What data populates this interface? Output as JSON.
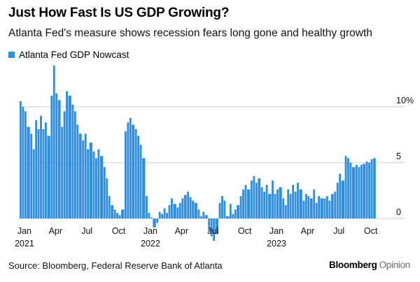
{
  "title": "Just How Fast Is US GDP Growing?",
  "subtitle": "Atlanta Fed's measure shows recession fears long gone and healthy growth",
  "source": "Source: Bloomberg, Federal Reserve Bank of Atlanta",
  "brand": {
    "name": "Bloomberg",
    "suffix": "Opinion"
  },
  "colors": {
    "series": "#2f8de4",
    "grid": "#cfcfcf",
    "text": "#111111"
  },
  "chart_data": {
    "type": "bar",
    "title": "Just How Fast Is US GDP Growing?",
    "subtitle": "Atlanta Fed's measure shows recession fears long gone and healthy growth",
    "xlabel": "",
    "ylabel": "",
    "x_range": [
      "2021-01-01",
      "2023-11-01"
    ],
    "ylim": [
      -2,
      15
    ],
    "grid": true,
    "legend": "top-left",
    "y_ticks": [
      {
        "value": 10,
        "label": "10%"
      },
      {
        "value": 5,
        "label": "5"
      },
      {
        "value": 0,
        "label": "0"
      }
    ],
    "x_ticks": [
      {
        "date": "2021-01-15",
        "label": "Jan",
        "year": "2021"
      },
      {
        "date": "2021-04-15",
        "label": "Apr"
      },
      {
        "date": "2021-07-15",
        "label": "Jul"
      },
      {
        "date": "2021-10-15",
        "label": "Oct"
      },
      {
        "date": "2022-01-15",
        "label": "Jan",
        "year": "2022"
      },
      {
        "date": "2022-04-15",
        "label": "Apr"
      },
      {
        "date": "2022-07-15",
        "label": "Jul"
      },
      {
        "date": "2022-10-15",
        "label": "Oct"
      },
      {
        "date": "2023-01-15",
        "label": "Jan",
        "year": "2023"
      },
      {
        "date": "2023-04-15",
        "label": "Apr"
      },
      {
        "date": "2023-07-15",
        "label": "Jul"
      },
      {
        "date": "2023-10-15",
        "label": "Oct"
      }
    ],
    "series": [
      {
        "name": "Atlanta Fed GDP Nowcast",
        "values": [
          [
            "2021-01-01",
            10.5
          ],
          [
            "2021-01-08",
            10.0
          ],
          [
            "2021-01-15",
            9.6
          ],
          [
            "2021-01-22",
            8.2
          ],
          [
            "2021-02-01",
            7.6
          ],
          [
            "2021-02-08",
            6.2
          ],
          [
            "2021-02-15",
            8.8
          ],
          [
            "2021-02-22",
            8.0
          ],
          [
            "2021-03-01",
            9.2
          ],
          [
            "2021-03-08",
            8.0
          ],
          [
            "2021-03-15",
            8.6
          ],
          [
            "2021-03-22",
            7.4
          ],
          [
            "2021-04-01",
            11.0
          ],
          [
            "2021-04-08",
            13.7
          ],
          [
            "2021-04-15",
            11.2
          ],
          [
            "2021-04-22",
            10.6
          ],
          [
            "2021-05-01",
            8.2
          ],
          [
            "2021-05-08",
            9.6
          ],
          [
            "2021-05-15",
            11.4
          ],
          [
            "2021-05-22",
            11.0
          ],
          [
            "2021-06-01",
            10.2
          ],
          [
            "2021-06-08",
            9.6
          ],
          [
            "2021-06-15",
            8.4
          ],
          [
            "2021-06-22",
            7.6
          ],
          [
            "2021-07-01",
            7.0
          ],
          [
            "2021-07-08",
            7.6
          ],
          [
            "2021-07-15",
            6.2
          ],
          [
            "2021-07-22",
            6.8
          ],
          [
            "2021-08-01",
            6.0
          ],
          [
            "2021-08-08",
            5.4
          ],
          [
            "2021-08-15",
            6.2
          ],
          [
            "2021-08-22",
            5.6
          ],
          [
            "2021-09-01",
            4.6
          ],
          [
            "2021-09-08",
            3.6
          ],
          [
            "2021-09-15",
            2.0
          ],
          [
            "2021-09-22",
            1.2
          ],
          [
            "2021-10-01",
            0.8
          ],
          [
            "2021-10-08",
            0.5
          ],
          [
            "2021-10-15",
            0.3
          ],
          [
            "2021-10-22",
            0.8
          ],
          [
            "2021-11-01",
            7.8
          ],
          [
            "2021-11-08",
            8.6
          ],
          [
            "2021-11-15",
            9.0
          ],
          [
            "2021-11-22",
            8.4
          ],
          [
            "2021-12-01",
            8.0
          ],
          [
            "2021-12-08",
            7.4
          ],
          [
            "2021-12-15",
            6.6
          ],
          [
            "2021-12-22",
            5.4
          ],
          [
            "2022-01-01",
            2.0
          ],
          [
            "2022-01-08",
            0.5
          ],
          [
            "2022-01-15",
            0.1
          ],
          [
            "2022-01-22",
            -0.8
          ],
          [
            "2022-02-01",
            -0.4
          ],
          [
            "2022-02-08",
            0.6
          ],
          [
            "2022-02-15",
            0.4
          ],
          [
            "2022-02-22",
            0.9
          ],
          [
            "2022-03-01",
            0.5
          ],
          [
            "2022-03-08",
            1.2
          ],
          [
            "2022-03-15",
            1.8
          ],
          [
            "2022-03-22",
            1.3
          ],
          [
            "2022-04-01",
            1.0
          ],
          [
            "2022-04-08",
            1.4
          ],
          [
            "2022-04-15",
            1.8
          ],
          [
            "2022-04-22",
            2.1
          ],
          [
            "2022-05-01",
            2.4
          ],
          [
            "2022-05-08",
            1.9
          ],
          [
            "2022-05-15",
            1.6
          ],
          [
            "2022-05-22",
            1.4
          ],
          [
            "2022-06-01",
            0.8
          ],
          [
            "2022-06-08",
            0.2
          ],
          [
            "2022-06-15",
            0.6
          ],
          [
            "2022-06-22",
            0.3
          ],
          [
            "2022-07-01",
            -1.2
          ],
          [
            "2022-07-08",
            -1.6
          ],
          [
            "2022-07-15",
            -2.0
          ],
          [
            "2022-07-22",
            -1.4
          ],
          [
            "2022-08-01",
            1.4
          ],
          [
            "2022-08-08",
            2.0
          ],
          [
            "2022-08-15",
            1.6
          ],
          [
            "2022-08-22",
            0.2
          ],
          [
            "2022-09-01",
            1.3
          ],
          [
            "2022-09-08",
            0.4
          ],
          [
            "2022-09-15",
            0.8
          ],
          [
            "2022-09-22",
            1.2
          ],
          [
            "2022-10-01",
            2.0
          ],
          [
            "2022-10-08",
            2.6
          ],
          [
            "2022-10-15",
            3.0
          ],
          [
            "2022-10-22",
            2.6
          ],
          [
            "2022-11-01",
            3.4
          ],
          [
            "2022-11-08",
            3.8
          ],
          [
            "2022-11-15",
            3.2
          ],
          [
            "2022-11-22",
            3.6
          ],
          [
            "2022-12-01",
            2.8
          ],
          [
            "2022-12-08",
            2.4
          ],
          [
            "2022-12-15",
            3.0
          ],
          [
            "2022-12-22",
            2.2
          ],
          [
            "2023-01-01",
            3.4
          ],
          [
            "2023-01-08",
            2.2
          ],
          [
            "2023-01-15",
            2.6
          ],
          [
            "2023-01-22",
            2.8
          ],
          [
            "2023-02-01",
            1.8
          ],
          [
            "2023-02-08",
            1.2
          ],
          [
            "2023-02-15",
            2.6
          ],
          [
            "2023-02-22",
            2.2
          ],
          [
            "2023-03-01",
            3.0
          ],
          [
            "2023-03-08",
            2.4
          ],
          [
            "2023-03-15",
            3.2
          ],
          [
            "2023-03-22",
            2.6
          ],
          [
            "2023-04-01",
            1.6
          ],
          [
            "2023-04-08",
            2.2
          ],
          [
            "2023-04-15",
            2.0
          ],
          [
            "2023-04-22",
            1.8
          ],
          [
            "2023-05-01",
            2.6
          ],
          [
            "2023-05-08",
            1.4
          ],
          [
            "2023-05-15",
            2.0
          ],
          [
            "2023-05-22",
            1.8
          ],
          [
            "2023-06-01",
            1.8
          ],
          [
            "2023-06-08",
            2.0
          ],
          [
            "2023-06-15",
            1.6
          ],
          [
            "2023-06-22",
            2.2
          ],
          [
            "2023-07-01",
            2.4
          ],
          [
            "2023-07-08",
            3.2
          ],
          [
            "2023-07-15",
            4.0
          ],
          [
            "2023-07-22",
            3.4
          ],
          [
            "2023-08-01",
            5.6
          ],
          [
            "2023-08-08",
            5.4
          ],
          [
            "2023-08-15",
            5.0
          ],
          [
            "2023-08-22",
            4.6
          ],
          [
            "2023-09-01",
            4.8
          ],
          [
            "2023-09-08",
            4.6
          ],
          [
            "2023-09-15",
            4.8
          ],
          [
            "2023-09-22",
            4.9
          ],
          [
            "2023-10-01",
            5.1
          ],
          [
            "2023-10-08",
            5.0
          ],
          [
            "2023-10-15",
            5.3
          ],
          [
            "2023-10-22",
            5.4
          ]
        ]
      }
    ]
  }
}
